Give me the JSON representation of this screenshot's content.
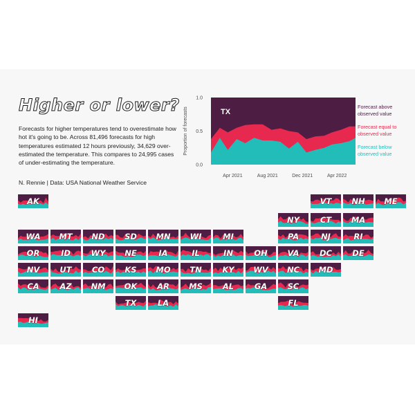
{
  "title": "Higher or lower?",
  "description": "Forecasts for higher temperatures tend to overestimate how hot it's going to be. Across 81,496 forecasts for high temperatures estimated 12 hours previously, 34,629 over-estimated the temperature. This compares to 24,995 cases of under-estimating the temperature.",
  "credit": "N. Rennie | Data: USA National Weather Service",
  "colors": {
    "above": "#4e1d44",
    "equal": "#e8294f",
    "below": "#23bdb9"
  },
  "chart_data": {
    "type": "area",
    "stacked": true,
    "main_panel": {
      "label": "TX",
      "ylabel": "Proportion of forecasts",
      "yticks": [
        "0.0",
        "0.5",
        "1.0"
      ],
      "ylim": [
        0,
        1
      ],
      "xlim": [
        "2021-01-15",
        "2022-06-05"
      ],
      "xticks": [
        {
          "date": "2021-04-01",
          "label": "Apr 2021"
        },
        {
          "date": "2021-08-01",
          "label": "Aug 2021"
        },
        {
          "date": "2021-12-01",
          "label": "Dec 2021"
        },
        {
          "date": "2022-04-01",
          "label": "Apr 2022"
        }
      ],
      "x": [
        "2021-01-15",
        "2021-02-15",
        "2021-03-15",
        "2021-04-15",
        "2021-05-15",
        "2021-06-15",
        "2021-07-15",
        "2021-08-15",
        "2021-09-15",
        "2021-10-15",
        "2021-11-15",
        "2021-12-15",
        "2022-01-15",
        "2022-02-15",
        "2022-03-15",
        "2022-04-15",
        "2022-05-15",
        "2022-06-05"
      ],
      "below": [
        0.18,
        0.4,
        0.22,
        0.38,
        0.32,
        0.4,
        0.36,
        0.36,
        0.34,
        0.24,
        0.34,
        0.18,
        0.22,
        0.25,
        0.3,
        0.32,
        0.35,
        0.4
      ],
      "equal": [
        0.2,
        0.15,
        0.26,
        0.17,
        0.27,
        0.2,
        0.24,
        0.16,
        0.2,
        0.26,
        0.14,
        0.2,
        0.2,
        0.18,
        0.18,
        0.2,
        0.22,
        0.17
      ],
      "legend": [
        {
          "series": "above",
          "line1": "Forecast above",
          "line2": "observed value"
        },
        {
          "series": "equal",
          "line1": "Forecast equal to",
          "line2": "observed value"
        },
        {
          "series": "below",
          "line1": "Forecast below",
          "line2": "observed value"
        }
      ]
    },
    "tiles": [
      {
        "state": "AK",
        "col": 0,
        "row": 0
      },
      {
        "state": "VT",
        "col": 9,
        "row": 0
      },
      {
        "state": "NH",
        "col": 10,
        "row": 0
      },
      {
        "state": "ME",
        "col": 11,
        "row": 0
      },
      {
        "state": "NY",
        "col": 8,
        "row": 1
      },
      {
        "state": "CT",
        "col": 9,
        "row": 1
      },
      {
        "state": "MA",
        "col": 10,
        "row": 1
      },
      {
        "state": "WA",
        "col": 0,
        "row": 2
      },
      {
        "state": "MT",
        "col": 1,
        "row": 2
      },
      {
        "state": "ND",
        "col": 2,
        "row": 2
      },
      {
        "state": "SD",
        "col": 3,
        "row": 2
      },
      {
        "state": "MN",
        "col": 4,
        "row": 2
      },
      {
        "state": "WI",
        "col": 5,
        "row": 2
      },
      {
        "state": "MI",
        "col": 6,
        "row": 2
      },
      {
        "state": "PA",
        "col": 8,
        "row": 2
      },
      {
        "state": "NJ",
        "col": 9,
        "row": 2
      },
      {
        "state": "RI",
        "col": 10,
        "row": 2
      },
      {
        "state": "OR",
        "col": 0,
        "row": 3
      },
      {
        "state": "ID",
        "col": 1,
        "row": 3
      },
      {
        "state": "WY",
        "col": 2,
        "row": 3
      },
      {
        "state": "NE",
        "col": 3,
        "row": 3
      },
      {
        "state": "IA",
        "col": 4,
        "row": 3
      },
      {
        "state": "IL",
        "col": 5,
        "row": 3
      },
      {
        "state": "IN",
        "col": 6,
        "row": 3
      },
      {
        "state": "OH",
        "col": 7,
        "row": 3
      },
      {
        "state": "VA",
        "col": 8,
        "row": 3
      },
      {
        "state": "DC",
        "col": 9,
        "row": 3
      },
      {
        "state": "DE",
        "col": 10,
        "row": 3
      },
      {
        "state": "NV",
        "col": 0,
        "row": 4
      },
      {
        "state": "UT",
        "col": 1,
        "row": 4
      },
      {
        "state": "CO",
        "col": 2,
        "row": 4
      },
      {
        "state": "KS",
        "col": 3,
        "row": 4
      },
      {
        "state": "MO",
        "col": 4,
        "row": 4
      },
      {
        "state": "TN",
        "col": 5,
        "row": 4
      },
      {
        "state": "KY",
        "col": 6,
        "row": 4
      },
      {
        "state": "WV",
        "col": 7,
        "row": 4
      },
      {
        "state": "NC",
        "col": 8,
        "row": 4
      },
      {
        "state": "MD",
        "col": 9,
        "row": 4
      },
      {
        "state": "CA",
        "col": 0,
        "row": 5
      },
      {
        "state": "AZ",
        "col": 1,
        "row": 5
      },
      {
        "state": "NM",
        "col": 2,
        "row": 5
      },
      {
        "state": "OK",
        "col": 3,
        "row": 5
      },
      {
        "state": "AR",
        "col": 4,
        "row": 5
      },
      {
        "state": "MS",
        "col": 5,
        "row": 5
      },
      {
        "state": "AL",
        "col": 6,
        "row": 5
      },
      {
        "state": "GA",
        "col": 7,
        "row": 5
      },
      {
        "state": "SC",
        "col": 8,
        "row": 5
      },
      {
        "state": "TX",
        "col": 3,
        "row": 6
      },
      {
        "state": "LA",
        "col": 4,
        "row": 6
      },
      {
        "state": "FL",
        "col": 8,
        "row": 6
      },
      {
        "state": "HI",
        "col": 0,
        "row": 7
      }
    ]
  }
}
